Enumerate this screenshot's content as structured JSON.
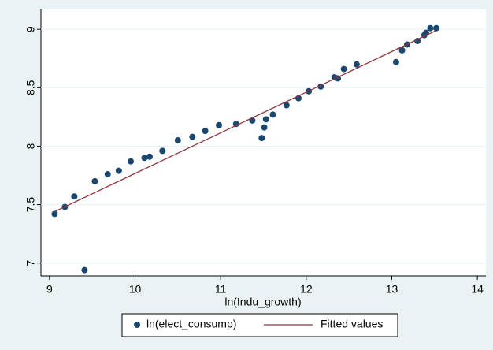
{
  "chart_data": {
    "type": "scatter",
    "x_label": "ln(Indu_growth)",
    "xlim": [
      8.9,
      14.1
    ],
    "xticks": [
      9,
      10,
      11,
      12,
      13,
      14
    ],
    "ylim": [
      6.89,
      9.17
    ],
    "yticks": [
      7,
      7.5,
      8,
      8.5,
      9
    ],
    "grid": true,
    "series": [
      {
        "name": "ln(elect_consump)",
        "type": "scatter",
        "color": "#1a476f",
        "x": [
          9.06,
          9.18,
          9.29,
          9.41,
          9.53,
          9.68,
          9.81,
          9.95,
          10.11,
          10.17,
          10.32,
          10.5,
          10.67,
          10.82,
          10.98,
          11.18,
          11.37,
          11.48,
          11.51,
          11.53,
          11.61,
          11.77,
          11.91,
          12.03,
          12.17,
          12.33,
          12.37,
          12.44,
          12.59,
          13.05,
          13.12,
          13.18,
          13.3,
          13.38,
          13.4,
          13.45,
          13.52
        ],
        "values": [
          7.42,
          7.48,
          7.57,
          6.94,
          7.7,
          7.76,
          7.79,
          7.87,
          7.9,
          7.91,
          7.96,
          8.05,
          8.08,
          8.13,
          8.18,
          8.19,
          8.22,
          8.07,
          8.16,
          8.23,
          8.27,
          8.35,
          8.41,
          8.47,
          8.51,
          8.59,
          8.58,
          8.66,
          8.7,
          8.72,
          8.82,
          8.87,
          8.9,
          8.95,
          8.97,
          9.01,
          9.01
        ]
      },
      {
        "name": "Fitted values",
        "type": "line",
        "color": "#90353b",
        "x": [
          9.06,
          13.52
        ],
        "values": [
          7.44,
          8.99
        ]
      }
    ]
  }
}
